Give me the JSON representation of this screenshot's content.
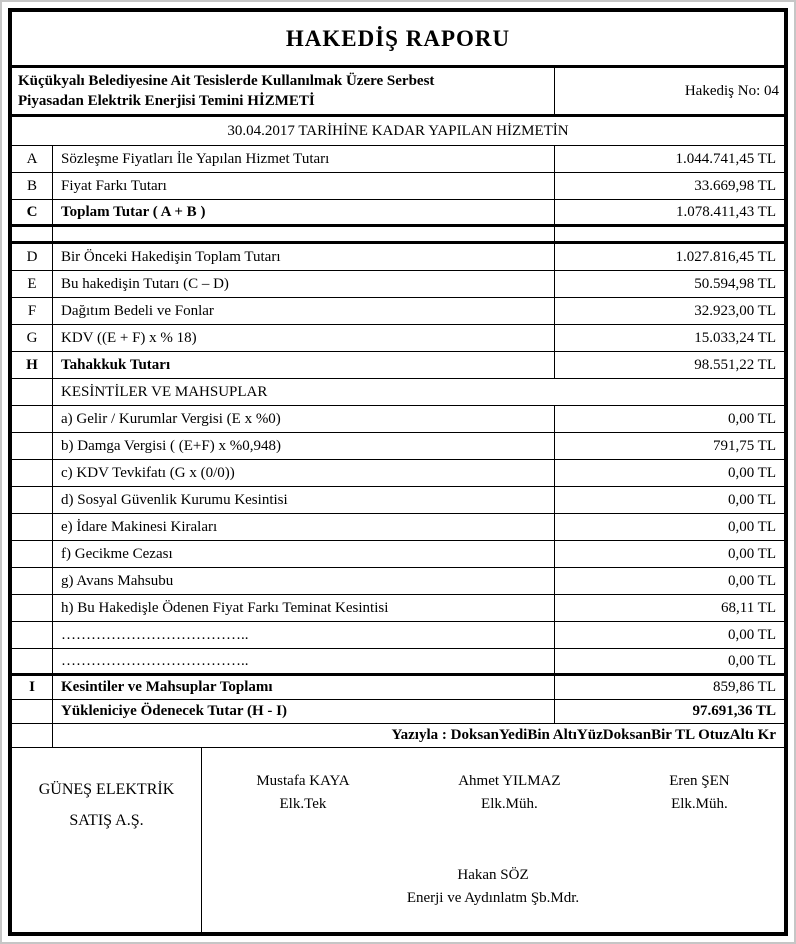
{
  "colors": {
    "border": "#000000",
    "background": "#ffffff",
    "frame": "#c6c6c6"
  },
  "report": {
    "title": "HAKEDİŞ RAPORU",
    "subject_line1": "Küçükyalı Belediyesine Ait Tesislerde Kullanılmak Üzere Serbest",
    "subject_line2": "Piyasadan Elektrik Enerjisi Temini HİZMETİ",
    "hakedis_no": "Hakediş No: 04",
    "period_header": "30.04.2017 TARİHİNE KADAR YAPILAN HİZMETİN"
  },
  "main_rows": [
    {
      "letter": "A",
      "label": "Sözleşme Fiyatları İle Yapılan Hizmet Tutarı",
      "value": "1.044.741,45 TL"
    },
    {
      "letter": "B",
      "label": "Fiyat Farkı Tutarı",
      "value": "33.669,98 TL"
    },
    {
      "letter": "C",
      "label": "Toplam Tutar   ( A + B )",
      "value": "1.078.411,43 TL"
    }
  ],
  "summary_rows": [
    {
      "letter": "D",
      "label": "Bir Önceki Hakedişin Toplam Tutarı",
      "value": "1.027.816,45 TL"
    },
    {
      "letter": "E",
      "label": "Bu hakedişin Tutarı (C – D)",
      "value": "50.594,98 TL"
    },
    {
      "letter": "F",
      "label": "Dağıtım Bedeli ve Fonlar",
      "value": "32.923,00 TL"
    },
    {
      "letter": "G",
      "label": "KDV  ((E + F) x % 18)",
      "value": "15.033,24 TL"
    },
    {
      "letter": "H",
      "label": "Tahakkuk Tutarı",
      "value": "98.551,22 TL"
    }
  ],
  "deductions": {
    "header": "KESİNTİLER VE MAHSUPLAR",
    "rows": [
      {
        "label": "a) Gelir / Kurumlar Vergisi (E x %0)",
        "value": "0,00 TL"
      },
      {
        "label": "b) Damga Vergisi ( (E+F) x %0,948)",
        "value": "791,75 TL"
      },
      {
        "label": "c) KDV Tevkifatı (G x (0/0))",
        "value": "0,00 TL"
      },
      {
        "label": "d) Sosyal Güvenlik Kurumu Kesintisi",
        "value": "0,00 TL"
      },
      {
        "label": "e) İdare Makinesi Kiraları",
        "value": "0,00 TL"
      },
      {
        "label": "f) Gecikme Cezası",
        "value": "0,00 TL"
      },
      {
        "label": "g) Avans Mahsubu",
        "value": "0,00 TL"
      },
      {
        "label": "h) Bu Hakedişle Ödenen Fiyat Farkı Teminat Kesintisi",
        "value": "68,11 TL"
      },
      {
        "label": "………………………………..",
        "value": "0,00 TL"
      },
      {
        "label": "………………………………..",
        "value": "0,00 TL"
      }
    ]
  },
  "totals": {
    "deduction_total": {
      "letter": "I",
      "label": "Kesintiler ve Mahsuplar Toplamı",
      "value": "859,86 TL"
    },
    "payable": {
      "label": "Yükleniciye Ödenecek Tutar  (H - I)",
      "value": "97.691,36 TL"
    },
    "in_words": "Yazıyla : DoksanYediBin AltıYüzDoksanBir TL OtuzAltı Kr"
  },
  "signatures": {
    "company_line1": "GÜNEŞ ELEKTRİK",
    "company_line2": "SATIŞ A.Ş.",
    "signers": [
      {
        "name": "Mustafa KAYA",
        "title": "Elk.Tek"
      },
      {
        "name": "Ahmet YILMAZ",
        "title": "Elk.Müh."
      },
      {
        "name": "Eren ŞEN",
        "title": "Elk.Müh."
      }
    ],
    "approver": {
      "name": "Hakan SÖZ",
      "title": "Enerji ve Aydınlatm Şb.Mdr."
    }
  }
}
